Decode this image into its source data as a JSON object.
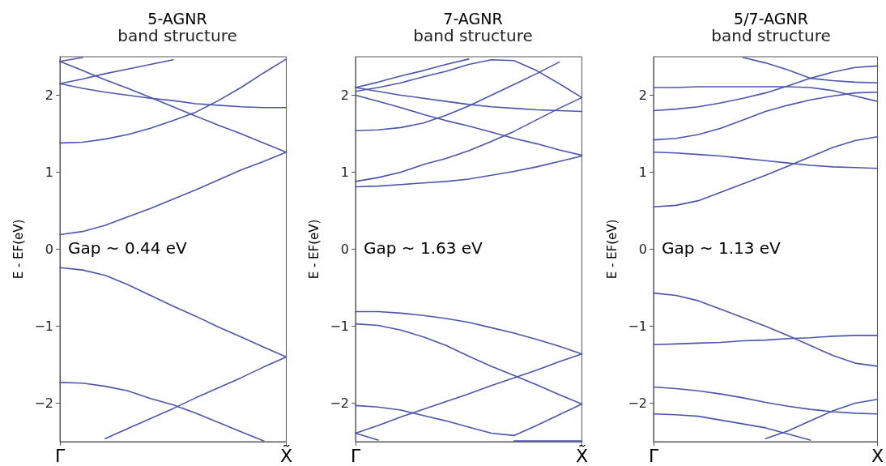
{
  "chart_data": [
    {
      "type": "line",
      "title": "5-AGNR",
      "subtitle": "band structure",
      "ylabel": "E - EF(eV)",
      "annotations": [
        "Gap ~ 0.44 eV"
      ],
      "categories": [
        "Γ",
        null,
        null,
        null,
        null,
        null,
        null,
        null,
        null,
        null,
        "X̃"
      ],
      "ylim": [
        -2.5,
        2.5
      ],
      "yticks": [
        -2,
        -1,
        0,
        1,
        2
      ],
      "grid": false,
      "marker": "none",
      "line_style": "solid",
      "series": [
        {
          "color": "#4a56ad",
          "values": [
            2.44,
            2.49,
            null,
            null,
            null,
            null,
            null,
            null,
            null,
            null,
            null
          ]
        },
        {
          "color": "#4a56ad",
          "values": [
            2.44,
            2.32,
            2.2,
            2.09,
            1.97,
            1.85,
            1.73,
            1.61,
            1.5,
            1.38,
            1.26
          ]
        },
        {
          "color": "#4a56ad",
          "values": [
            2.15,
            2.21,
            2.28,
            2.34,
            2.4,
            2.46,
            null,
            null,
            null,
            null,
            null
          ]
        },
        {
          "color": "#4a56ad",
          "values": [
            2.15,
            2.09,
            2.04,
            2.0,
            1.96,
            1.93,
            1.89,
            1.87,
            1.85,
            1.84,
            1.84
          ]
        },
        {
          "color": "#4a56ad",
          "values": [
            1.38,
            1.39,
            1.43,
            1.49,
            1.57,
            1.67,
            1.78,
            1.93,
            2.1,
            2.29,
            2.47
          ]
        },
        {
          "color": "#4a56ad",
          "values": [
            0.19,
            0.23,
            0.31,
            0.42,
            0.53,
            0.65,
            0.77,
            0.9,
            1.03,
            1.14,
            1.26
          ]
        },
        {
          "color": "#4a56ad",
          "values": [
            -0.24,
            -0.27,
            -0.34,
            -0.46,
            -0.6,
            -0.74,
            -0.87,
            -1.01,
            -1.14,
            -1.27,
            -1.4
          ]
        },
        {
          "color": "#4a56ad",
          "values": [
            -1.73,
            -1.74,
            -1.78,
            -1.84,
            -1.94,
            -2.02,
            -2.13,
            -2.25,
            -2.37,
            -2.49,
            null
          ]
        },
        {
          "color": "#4a56ad",
          "values": [
            null,
            null,
            -2.46,
            -2.33,
            -2.2,
            -2.07,
            -1.93,
            -1.8,
            -1.67,
            -1.53,
            -1.4
          ]
        }
      ]
    },
    {
      "type": "line",
      "title": "7-AGNR",
      "subtitle": "band structure",
      "ylabel": "E - EF(eV)",
      "annotations": [
        "Gap ~ 1.63 eV"
      ],
      "categories": [
        "Γ",
        null,
        null,
        null,
        null,
        null,
        null,
        null,
        null,
        null,
        "X̃"
      ],
      "ylim": [
        -2.5,
        2.5
      ],
      "yticks": [
        -2,
        -1,
        0,
        1,
        2
      ],
      "grid": false,
      "marker": "none",
      "line_style": "solid",
      "series": [
        {
          "color": "#4a56ad",
          "values": [
            2.1,
            2.17,
            2.25,
            2.32,
            2.4,
            2.47,
            null,
            null,
            null,
            null,
            null
          ]
        },
        {
          "color": "#4a56ad",
          "values": [
            2.05,
            2.1,
            2.16,
            2.24,
            2.31,
            2.4,
            2.46,
            2.45,
            2.32,
            2.15,
            1.97
          ]
        },
        {
          "color": "#4a56ad",
          "values": [
            2.1,
            2.05,
            2.0,
            1.96,
            1.92,
            1.88,
            1.85,
            1.83,
            1.81,
            1.8,
            1.79
          ]
        },
        {
          "color": "#4a56ad",
          "values": [
            2.0,
            1.92,
            1.84,
            1.75,
            1.67,
            1.6,
            1.52,
            1.44,
            1.37,
            1.29,
            1.22
          ]
        },
        {
          "color": "#4a56ad",
          "values": [
            1.54,
            1.55,
            1.58,
            1.64,
            1.74,
            1.86,
            2.0,
            2.14,
            2.28,
            2.43,
            null
          ]
        },
        {
          "color": "#4a56ad",
          "values": [
            0.88,
            0.93,
            1.0,
            1.1,
            1.18,
            1.28,
            1.4,
            1.53,
            1.68,
            1.83,
            1.97
          ]
        },
        {
          "color": "#4a56ad",
          "values": [
            0.81,
            0.82,
            0.84,
            0.86,
            0.88,
            0.91,
            0.96,
            1.01,
            1.07,
            1.14,
            1.21
          ]
        },
        {
          "color": "#4a56ad",
          "values": [
            -0.81,
            -0.81,
            -0.83,
            -0.86,
            -0.9,
            -0.95,
            -1.02,
            -1.09,
            -1.17,
            -1.26,
            -1.36
          ]
        },
        {
          "color": "#4a56ad",
          "values": [
            -0.97,
            -0.99,
            -1.05,
            -1.14,
            -1.25,
            -1.39,
            -1.52,
            -1.64,
            -1.76,
            -1.89,
            -2.01
          ]
        },
        {
          "color": "#4a56ad",
          "values": [
            -2.39,
            -2.29,
            -2.18,
            -2.08,
            -1.98,
            -1.88,
            -1.77,
            -1.67,
            -1.57,
            -1.46,
            -1.36
          ]
        },
        {
          "color": "#4a56ad",
          "values": [
            -2.03,
            -2.05,
            -2.09,
            -2.16,
            -2.23,
            -2.31,
            -2.39,
            -2.42,
            -2.29,
            -2.15,
            -2.01
          ]
        },
        {
          "color": "#4a56ad",
          "values": [
            -2.39,
            -2.48,
            null,
            null,
            null,
            null,
            null,
            null,
            null,
            null,
            null
          ]
        },
        {
          "color": "#4a56ad",
          "values": [
            null,
            null,
            null,
            null,
            null,
            null,
            null,
            -2.49,
            -2.49,
            -2.49,
            -2.49
          ]
        }
      ]
    },
    {
      "type": "line",
      "title": "5/7-AGNR",
      "subtitle": "band structure",
      "ylabel": "E - EF(eV)",
      "annotations": [
        "Gap ~ 1.13 eV"
      ],
      "categories": [
        "Γ",
        null,
        null,
        null,
        null,
        null,
        null,
        null,
        null,
        null,
        "X"
      ],
      "ylim": [
        -2.5,
        2.5
      ],
      "yticks": [
        -2,
        -1,
        0,
        1,
        2
      ],
      "grid": false,
      "marker": "none",
      "line_style": "solid",
      "series": [
        {
          "color": "#4a56ad",
          "values": [
            null,
            null,
            null,
            null,
            2.49,
            2.42,
            2.33,
            2.22,
            2.19,
            2.17,
            2.16
          ]
        },
        {
          "color": "#4a56ad",
          "values": [
            2.1,
            2.1,
            2.11,
            2.11,
            2.11,
            2.11,
            2.11,
            2.1,
            2.06,
            1.99,
            1.92
          ]
        },
        {
          "color": "#4a56ad",
          "values": [
            1.8,
            1.82,
            1.85,
            1.9,
            1.96,
            2.03,
            2.12,
            2.22,
            2.3,
            2.36,
            2.38
          ]
        },
        {
          "color": "#4a56ad",
          "values": [
            1.42,
            1.44,
            1.49,
            1.57,
            1.68,
            1.79,
            1.87,
            1.94,
            1.99,
            2.03,
            2.04
          ]
        },
        {
          "color": "#4a56ad",
          "values": [
            1.26,
            1.25,
            1.23,
            1.21,
            1.18,
            1.15,
            1.12,
            1.09,
            1.07,
            1.06,
            1.05
          ]
        },
        {
          "color": "#4a56ad",
          "values": [
            0.55,
            0.57,
            0.63,
            0.74,
            0.85,
            0.96,
            1.08,
            1.2,
            1.32,
            1.41,
            1.46
          ]
        },
        {
          "color": "#4a56ad",
          "values": [
            -0.57,
            -0.6,
            -0.67,
            -0.78,
            -0.89,
            -1.0,
            -1.12,
            -1.25,
            -1.38,
            -1.48,
            -1.52
          ]
        },
        {
          "color": "#4a56ad",
          "values": [
            -1.24,
            -1.23,
            -1.22,
            -1.21,
            -1.19,
            -1.18,
            -1.16,
            -1.15,
            -1.13,
            -1.12,
            -1.12
          ]
        },
        {
          "color": "#4a56ad",
          "values": [
            -1.79,
            -1.81,
            -1.84,
            -1.88,
            -1.93,
            -1.99,
            -2.04,
            -2.08,
            -2.11,
            -2.13,
            -2.14
          ]
        },
        {
          "color": "#4a56ad",
          "values": [
            -2.14,
            -2.15,
            -2.17,
            -2.22,
            -2.27,
            -2.32,
            -2.4,
            -2.48,
            null,
            null,
            null
          ]
        },
        {
          "color": "#4a56ad",
          "values": [
            null,
            null,
            null,
            null,
            null,
            -2.46,
            -2.36,
            -2.23,
            -2.1,
            -2.0,
            -1.95
          ]
        }
      ]
    }
  ]
}
